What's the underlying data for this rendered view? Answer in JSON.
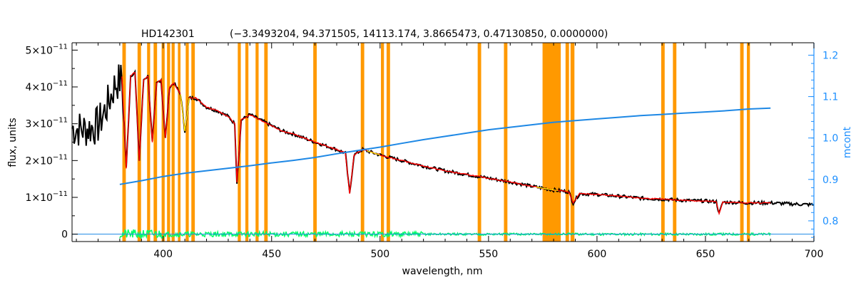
{
  "chart_data": {
    "type": "line",
    "title": "HD142301",
    "subtitle": "(−3.3493204, 94.371505, 14113.174, 3.8665473, 0.47130850, 0.0000000)",
    "xlabel": "wavelength, nm",
    "ylabel": "flux, units",
    "y2label": "mcont",
    "xlim": [
      358,
      700
    ],
    "ylim": [
      -0.2,
      5.2
    ],
    "y2lim": [
      0.75,
      1.23
    ],
    "grid": false,
    "legend": "none",
    "x_ticks": [
      "400",
      "450",
      "500",
      "550",
      "600",
      "650",
      "700"
    ],
    "y_ticks": [
      {
        "value": 0,
        "mant": "0",
        "exp": ""
      },
      {
        "value": 1,
        "mant": "1×10",
        "exp": "−11"
      },
      {
        "value": 2,
        "mant": "2×10",
        "exp": "−11"
      },
      {
        "value": 3,
        "mant": "3×10",
        "exp": "−11"
      },
      {
        "value": 4,
        "mant": "4×10",
        "exp": "−11"
      },
      {
        "value": 5,
        "mant": "5×10",
        "exp": "−11"
      }
    ],
    "y2_ticks": [
      "0.8",
      "0.9",
      "1.0",
      "1.1",
      "1.2"
    ],
    "colors": {
      "observed": "#000000",
      "model": "#ff0000",
      "residual": "#00ff66",
      "mcont": "#1e88e5",
      "mask": "#ff9900",
      "yellow": "#ffff00",
      "right_axis": "#1e90ff"
    },
    "masked_regions_nm": [
      [
        381.2,
        382.8
      ],
      [
        388.2,
        389.8
      ],
      [
        392.6,
        394.0
      ],
      [
        395.6,
        397.2
      ],
      [
        399.3,
        400.7
      ],
      [
        401.8,
        403.2
      ],
      [
        403.9,
        405.3
      ],
      [
        406.8,
        408.0
      ],
      [
        410.4,
        411.8
      ],
      [
        413.0,
        414.6
      ],
      [
        434.4,
        435.8
      ],
      [
        437.9,
        439.3
      ],
      [
        442.6,
        444.0
      ],
      [
        446.6,
        448.2
      ],
      [
        469.2,
        470.8
      ],
      [
        491.1,
        492.7
      ],
      [
        500.4,
        501.8
      ],
      [
        503.0,
        504.6
      ],
      [
        545.0,
        546.6
      ],
      [
        557.1,
        558.7
      ],
      [
        574.9,
        583.3
      ],
      [
        585.5,
        587.1
      ],
      [
        587.8,
        589.6
      ],
      [
        629.6,
        631.2
      ],
      [
        635.0,
        636.6
      ],
      [
        666.0,
        667.6
      ],
      [
        669.1,
        670.5
      ]
    ],
    "series": [
      {
        "name": "observed",
        "x": [
          358,
          364,
          370,
          375,
          378,
          381,
          383,
          385,
          387,
          389,
          391,
          393,
          395,
          397,
          399,
          401,
          403,
          405,
          408,
          410,
          412,
          415,
          420,
          425,
          430,
          433,
          434,
          436,
          440,
          445,
          450,
          455,
          460,
          470,
          480,
          484,
          486,
          488,
          492,
          500,
          510,
          520,
          530,
          540,
          550,
          560,
          570,
          580,
          587,
          589,
          592,
          600,
          620,
          640,
          650,
          655,
          656.3,
          658,
          670,
          680,
          690,
          700
        ],
        "y": [
          2.88,
          2.85,
          2.95,
          3.6,
          4.1,
          4.2,
          1.8,
          4.3,
          4.4,
          2.0,
          4.2,
          4.3,
          2.5,
          4.1,
          4.2,
          2.6,
          4.0,
          4.1,
          3.8,
          2.8,
          3.7,
          3.7,
          3.45,
          3.35,
          3.2,
          3.0,
          1.4,
          3.1,
          3.25,
          3.1,
          2.95,
          2.8,
          2.72,
          2.5,
          2.3,
          2.2,
          1.1,
          2.15,
          2.3,
          2.15,
          2.0,
          1.85,
          1.72,
          1.62,
          1.52,
          1.42,
          1.3,
          1.2,
          1.15,
          0.85,
          1.1,
          1.08,
          0.98,
          0.92,
          0.9,
          0.88,
          0.55,
          0.87,
          0.85,
          0.85,
          0.82,
          0.8
        ]
      },
      {
        "name": "model",
        "x": [
          381,
          383,
          385,
          387,
          389,
          391,
          393,
          395,
          397,
          399,
          401,
          403,
          405,
          408,
          410,
          412,
          415,
          420,
          425,
          430,
          433,
          434,
          436,
          440,
          445,
          450,
          455,
          460,
          470,
          480,
          484,
          486,
          488,
          492,
          500,
          510,
          520,
          530,
          540,
          550,
          560,
          570,
          580,
          587,
          589,
          592,
          600,
          620,
          640,
          650,
          655,
          656.3,
          658,
          670,
          680
        ],
        "y": [
          4.2,
          1.8,
          4.3,
          4.4,
          2.0,
          4.2,
          4.3,
          2.5,
          4.1,
          4.2,
          2.6,
          4.0,
          4.1,
          3.8,
          2.8,
          3.7,
          3.7,
          3.45,
          3.35,
          3.2,
          3.0,
          1.4,
          3.1,
          3.25,
          3.1,
          2.95,
          2.8,
          2.72,
          2.5,
          2.3,
          2.2,
          1.1,
          2.15,
          2.3,
          2.15,
          2.0,
          1.85,
          1.72,
          1.62,
          1.52,
          1.42,
          1.3,
          1.2,
          1.15,
          0.85,
          1.1,
          1.08,
          0.98,
          0.92,
          0.9,
          0.88,
          0.55,
          0.87,
          0.85,
          0.85
        ]
      },
      {
        "name": "mcont",
        "axis": "right",
        "x": [
          380,
          390,
          400,
          410,
          420,
          430,
          440,
          450,
          460,
          470,
          480,
          490,
          500,
          510,
          520,
          530,
          540,
          550,
          560,
          570,
          580,
          590,
          600,
          610,
          620,
          630,
          640,
          650,
          660,
          670,
          680
        ],
        "y": [
          0.888,
          0.897,
          0.907,
          0.915,
          0.921,
          0.927,
          0.933,
          0.94,
          0.946,
          0.953,
          0.962,
          0.97,
          0.978,
          0.987,
          0.996,
          1.004,
          1.012,
          1.02,
          1.026,
          1.032,
          1.038,
          1.042,
          1.046,
          1.05,
          1.054,
          1.057,
          1.06,
          1.063,
          1.066,
          1.07,
          1.072
        ]
      },
      {
        "name": "residual",
        "x": [
          380,
          395,
          410,
          430,
          450,
          470,
          490,
          510,
          530,
          550,
          570,
          590,
          610,
          630,
          650,
          670,
          680
        ],
        "y": [
          0.05,
          0.0,
          0.0,
          0.0,
          0.0,
          0.0,
          0.0,
          0.0,
          0.0,
          0.0,
          0.0,
          0.0,
          0.0,
          0.0,
          0.0,
          0.0,
          0.0
        ]
      }
    ]
  }
}
